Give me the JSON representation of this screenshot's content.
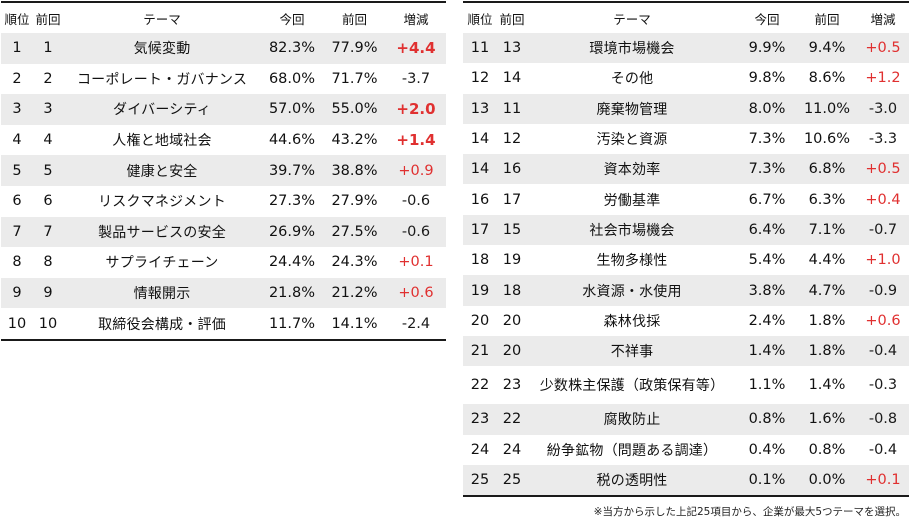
{
  "headers": {
    "rank": "順位",
    "prev_rank": "前回",
    "theme": "テーマ",
    "current": "今回",
    "previous": "前回",
    "change": "増減"
  },
  "left_rows": [
    {
      "rank": "1",
      "prev": "1",
      "theme": "気候変動",
      "current": "82.3%",
      "previous": "77.9%",
      "change": "+4.4",
      "style": "big"
    },
    {
      "rank": "2",
      "prev": "2",
      "theme": "コーポレート・ガバナンス",
      "current": "68.0%",
      "previous": "71.7%",
      "change": "-3.7",
      "style": "neg"
    },
    {
      "rank": "3",
      "prev": "3",
      "theme": "ダイバーシティ",
      "current": "57.0%",
      "previous": "55.0%",
      "change": "+2.0",
      "style": "big"
    },
    {
      "rank": "4",
      "prev": "4",
      "theme": "人権と地域社会",
      "current": "44.6%",
      "previous": "43.2%",
      "change": "+1.4",
      "style": "big"
    },
    {
      "rank": "5",
      "prev": "5",
      "theme": "健康と安全",
      "current": "39.7%",
      "previous": "38.8%",
      "change": "+0.9",
      "style": "pos"
    },
    {
      "rank": "6",
      "prev": "6",
      "theme": "リスクマネジメント",
      "current": "27.3%",
      "previous": "27.9%",
      "change": "-0.6",
      "style": "neg"
    },
    {
      "rank": "7",
      "prev": "7",
      "theme": "製品サービスの安全",
      "current": "26.9%",
      "previous": "27.5%",
      "change": "-0.6",
      "style": "neg"
    },
    {
      "rank": "8",
      "prev": "8",
      "theme": "サプライチェーン",
      "current": "24.4%",
      "previous": "24.3%",
      "change": "+0.1",
      "style": "pos"
    },
    {
      "rank": "9",
      "prev": "9",
      "theme": "情報開示",
      "current": "21.8%",
      "previous": "21.2%",
      "change": "+0.6",
      "style": "pos"
    },
    {
      "rank": "10",
      "prev": "10",
      "theme": "取締役会構成・評価",
      "current": "11.7%",
      "previous": "14.1%",
      "change": "-2.4",
      "style": "neg"
    }
  ],
  "right_rows": [
    {
      "rank": "11",
      "prev": "13",
      "theme": "環境市場機会",
      "current": "9.9%",
      "previous": "9.4%",
      "change": "+0.5",
      "style": "pos"
    },
    {
      "rank": "12",
      "prev": "14",
      "theme": "その他",
      "current": "9.8%",
      "previous": "8.6%",
      "change": "+1.2",
      "style": "pos"
    },
    {
      "rank": "13",
      "prev": "11",
      "theme": "廃棄物管理",
      "current": "8.0%",
      "previous": "11.0%",
      "change": "-3.0",
      "style": "neg"
    },
    {
      "rank": "14",
      "prev": "12",
      "theme": "汚染と資源",
      "current": "7.3%",
      "previous": "10.6%",
      "change": "-3.3",
      "style": "neg"
    },
    {
      "rank": "14",
      "prev": "16",
      "theme": "資本効率",
      "current": "7.3%",
      "previous": "6.8%",
      "change": "+0.5",
      "style": "pos"
    },
    {
      "rank": "16",
      "prev": "17",
      "theme": "労働基準",
      "current": "6.7%",
      "previous": "6.3%",
      "change": "+0.4",
      "style": "pos"
    },
    {
      "rank": "17",
      "prev": "15",
      "theme": "社会市場機会",
      "current": "6.4%",
      "previous": "7.1%",
      "change": "-0.7",
      "style": "neg"
    },
    {
      "rank": "18",
      "prev": "19",
      "theme": "生物多様性",
      "current": "5.4%",
      "previous": "4.4%",
      "change": "+1.0",
      "style": "pos"
    },
    {
      "rank": "19",
      "prev": "18",
      "theme": "水資源・水使用",
      "current": "3.8%",
      "previous": "4.7%",
      "change": "-0.9",
      "style": "neg"
    },
    {
      "rank": "20",
      "prev": "20",
      "theme": "森林伐採",
      "current": "2.4%",
      "previous": "1.8%",
      "change": "+0.6",
      "style": "pos"
    },
    {
      "rank": "21",
      "prev": "20",
      "theme": "不祥事",
      "current": "1.4%",
      "previous": "1.8%",
      "change": "-0.4",
      "style": "neg"
    },
    {
      "rank": "22",
      "prev": "23",
      "theme": "少数株主保護（政策保有等）",
      "current": "1.1%",
      "previous": "1.4%",
      "change": "-0.3",
      "style": "neg",
      "tall": true
    },
    {
      "rank": "23",
      "prev": "22",
      "theme": "腐敗防止",
      "current": "0.8%",
      "previous": "1.6%",
      "change": "-0.8",
      "style": "neg"
    },
    {
      "rank": "24",
      "prev": "24",
      "theme": "紛争鉱物（問題ある調達）",
      "current": "0.4%",
      "previous": "0.8%",
      "change": "-0.4",
      "style": "neg"
    },
    {
      "rank": "25",
      "prev": "25",
      "theme": "税の透明性",
      "current": "0.1%",
      "previous": "0.0%",
      "change": "+0.1",
      "style": "pos"
    }
  ],
  "footnote": "※当方から示した上記25項目から、企業が最大5つテーマを選択。",
  "colors": {
    "increase": "#e03030",
    "decrease": "#1a1a1a",
    "stripe": "#ebebeb"
  }
}
